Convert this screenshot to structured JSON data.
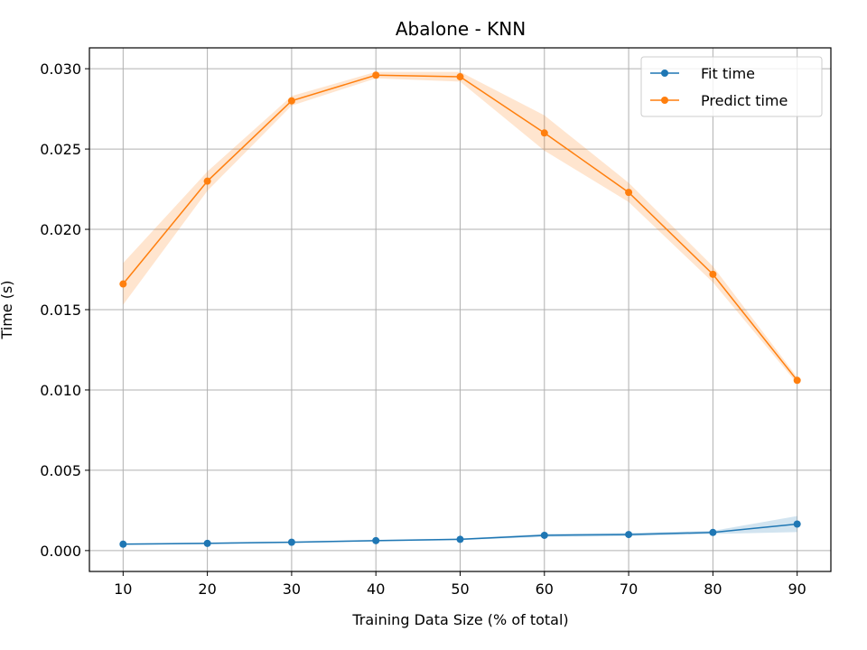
{
  "chart_data": {
    "type": "line",
    "title": "Abalone - KNN",
    "xlabel": "Training Data Size (% of total)",
    "ylabel": "Time (s)",
    "x": [
      10,
      20,
      30,
      40,
      50,
      60,
      70,
      80,
      90
    ],
    "xlim": [
      6,
      94
    ],
    "ylim": [
      -0.0013,
      0.0313
    ],
    "xticks": [
      "10",
      "20",
      "30",
      "40",
      "50",
      "60",
      "70",
      "80",
      "90"
    ],
    "yticks": [
      "0.000",
      "0.005",
      "0.010",
      "0.015",
      "0.020",
      "0.025",
      "0.030"
    ],
    "grid": true,
    "legend_position": "top-right",
    "series": [
      {
        "name": "Fit time",
        "color": "#1f77b4",
        "values": [
          0.0004,
          0.00045,
          0.00052,
          0.00062,
          0.0007,
          0.00095,
          0.001,
          0.00113,
          0.00165
        ],
        "std": [
          5e-05,
          5e-05,
          5e-05,
          5e-05,
          5e-05,
          0.0001,
          0.0001,
          0.0001,
          0.0005
        ]
      },
      {
        "name": "Predict time",
        "color": "#ff7f0e",
        "values": [
          0.0166,
          0.023,
          0.028,
          0.0296,
          0.0295,
          0.026,
          0.0223,
          0.0172,
          0.0106
        ],
        "std": [
          0.0013,
          0.0006,
          0.0003,
          0.0002,
          0.0003,
          0.0011,
          0.0006,
          0.0005,
          0.0002
        ]
      }
    ]
  }
}
